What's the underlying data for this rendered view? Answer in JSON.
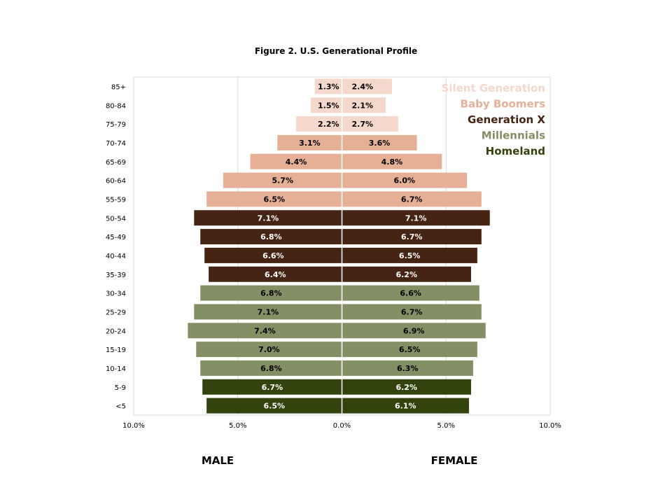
{
  "chart_data": {
    "type": "bar",
    "orientation": "horizontal-pyramid",
    "title": "Figure 2. U.S. Generational Profile",
    "categories": [
      "85+",
      "80-84",
      "75-79",
      "70-74",
      "65-69",
      "60-64",
      "55-59",
      "50-54",
      "45-49",
      "40-44",
      "35-39",
      "30-34",
      "25-29",
      "20-24",
      "15-19",
      "10-14",
      "5-9",
      "<5"
    ],
    "series": [
      {
        "name": "MALE",
        "values": [
          1.3,
          1.5,
          2.2,
          3.1,
          4.4,
          5.7,
          6.5,
          7.1,
          6.8,
          6.6,
          6.4,
          6.8,
          7.1,
          7.4,
          7.0,
          6.8,
          6.7,
          6.5
        ]
      },
      {
        "name": "FEMALE",
        "values": [
          2.4,
          2.1,
          2.7,
          3.6,
          4.8,
          6.0,
          6.7,
          7.1,
          6.7,
          6.5,
          6.2,
          6.6,
          6.7,
          6.9,
          6.5,
          6.3,
          6.2,
          6.1
        ]
      }
    ],
    "generation_of_row": [
      0,
      0,
      0,
      1,
      1,
      1,
      1,
      2,
      2,
      2,
      2,
      3,
      3,
      3,
      3,
      3,
      4,
      4
    ],
    "legend": [
      {
        "name": "Silent Generation",
        "color": "#f4d8cb",
        "label_color": "#000000"
      },
      {
        "name": "Baby Boomers",
        "color": "#e6b097",
        "label_color": "#000000"
      },
      {
        "name": "Generation X",
        "color": "#452414",
        "label_color": "#ffffff"
      },
      {
        "name": "Millennials",
        "color": "#848f65",
        "label_color": "#000000"
      },
      {
        "name": "Homeland",
        "color": "#33430e",
        "label_color": "#ffffff"
      }
    ],
    "legend_position": "top-right",
    "xticks": [
      "10.0%",
      "5.0%",
      "0.0%",
      "5.0%",
      "10.0%"
    ],
    "xlim": [
      -10,
      10
    ],
    "grid": true,
    "side_labels": [
      "MALE",
      "FEMALE"
    ]
  }
}
